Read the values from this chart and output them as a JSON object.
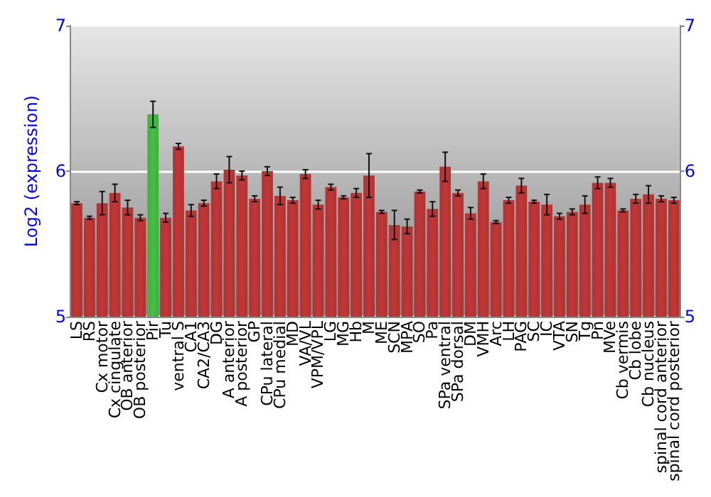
{
  "chart_data": {
    "type": "bar",
    "ylabel": "Log2 (expression)",
    "categories": [
      "LS",
      "RS",
      "Cx motor",
      "Cx cingulate",
      "OB anterior",
      "OB posterior",
      "Pir",
      "Tu",
      "ventral S",
      "CA1",
      "CA2/CA3",
      "DG",
      "A anterior",
      "A posterior",
      "GP",
      "CPu lateral",
      "CPu medial",
      "MD",
      "VA/VL",
      "VPM/VPL",
      "LG",
      "MG",
      "Hb",
      "M",
      "ME",
      "SCN",
      "MPA",
      "SO",
      "Pa",
      "SPa ventral",
      "SPa dorsal",
      "DM",
      "VMH",
      "Arc",
      "LH",
      "PAG",
      "SC",
      "IC",
      "VTA",
      "SN",
      "Tg",
      "Pn",
      "MVe",
      "Cb vermis",
      "Cb lobe",
      "Cb nucleus",
      "spinal cord anterior",
      "spinal cord posterior"
    ],
    "values": [
      5.78,
      5.68,
      5.78,
      5.85,
      5.75,
      5.68,
      6.39,
      5.68,
      6.17,
      5.73,
      5.78,
      5.93,
      6.01,
      5.97,
      5.81,
      6.0,
      5.83,
      5.8,
      5.98,
      5.77,
      5.89,
      5.82,
      5.85,
      5.97,
      5.72,
      5.63,
      5.62,
      5.86,
      5.74,
      6.03,
      5.85,
      5.71,
      5.93,
      5.65,
      5.8,
      5.9,
      5.79,
      5.77,
      5.69,
      5.72,
      5.77,
      5.92,
      5.92,
      5.73,
      5.81,
      5.84,
      5.81,
      5.8
    ],
    "errors": [
      0.01,
      0.01,
      0.08,
      0.06,
      0.05,
      0.02,
      0.09,
      0.03,
      0.02,
      0.04,
      0.02,
      0.05,
      0.09,
      0.03,
      0.02,
      0.03,
      0.06,
      0.02,
      0.03,
      0.03,
      0.02,
      0.01,
      0.03,
      0.15,
      0.01,
      0.1,
      0.05,
      0.01,
      0.05,
      0.1,
      0.02,
      0.04,
      0.05,
      0.01,
      0.02,
      0.05,
      0.01,
      0.07,
      0.02,
      0.02,
      0.06,
      0.04,
      0.03,
      0.01,
      0.03,
      0.06,
      0.02,
      0.02
    ],
    "colors": [
      "#b03232",
      "#b03232",
      "#b03232",
      "#b03232",
      "#b03232",
      "#b03232",
      "#3fae3f",
      "#b03232",
      "#b03232",
      "#b03232",
      "#b03232",
      "#b03232",
      "#b03232",
      "#b03232",
      "#b03232",
      "#b03232",
      "#b03232",
      "#b03232",
      "#b03232",
      "#b03232",
      "#b03232",
      "#b03232",
      "#b03232",
      "#b03232",
      "#b03232",
      "#b03232",
      "#b03232",
      "#b03232",
      "#b03232",
      "#b03232",
      "#b03232",
      "#b03232",
      "#b03232",
      "#b03232",
      "#b03232",
      "#b03232",
      "#b03232",
      "#b03232",
      "#b03232",
      "#b03232",
      "#b03232",
      "#b03232",
      "#b03232",
      "#b03232",
      "#b03232",
      "#b03232",
      "#b03232",
      "#b03232"
    ],
    "ylim": [
      5,
      7
    ],
    "yticks": [
      5,
      6,
      7
    ],
    "y2lim": [
      5,
      7
    ],
    "y2ticks": [
      5,
      6,
      7
    ],
    "grid": "y"
  }
}
